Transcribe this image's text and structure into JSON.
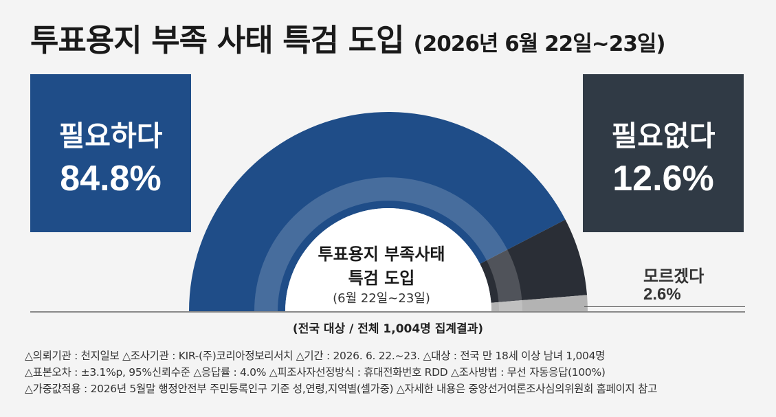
{
  "title": {
    "main": "투표용지 부족 사태 특검 도입",
    "sub": "(2026년 6월 22일~23일)"
  },
  "chart_data": {
    "type": "pie",
    "subtype": "semi-donut",
    "categories": [
      "필요하다",
      "필요없다",
      "모르겠다"
    ],
    "values": [
      84.8,
      12.6,
      2.6
    ],
    "value_labels": [
      "84.8%",
      "12.6%",
      "2.6%"
    ],
    "colors": [
      "#1f4d88",
      "#2a2e36",
      "#b3b3b3"
    ],
    "center_title_line1": "투표용지 부족사태",
    "center_title_line2": "특검 도입",
    "center_subtitle": "(6월 22일~23일)"
  },
  "basis": "(전국 대상 / 전체 1,004명 집계결과)",
  "notes": [
    "△의뢰기관 : 천지일보    △조사기관 : KIR-(주)코리아정보리서치    △기간 : 2026. 6. 22.~23.  △대상 : 전국 만 18세 이상 남녀 1,004명",
    "△표본오차 : ±3.1%p, 95%신뢰수준    △응답률 : 4.0%    △피조사자선정방식 : 휴대전화번호 RDD    △조사방법 : 무선 자동응답(100%)",
    "△가중값적용 : 2026년 5월말 행정안전부 주민등록인구 기준 성,연령,지역별(셀가중)  △자세한 내용은 중앙선거여론조사심의위원회 홈페이지 참고"
  ]
}
